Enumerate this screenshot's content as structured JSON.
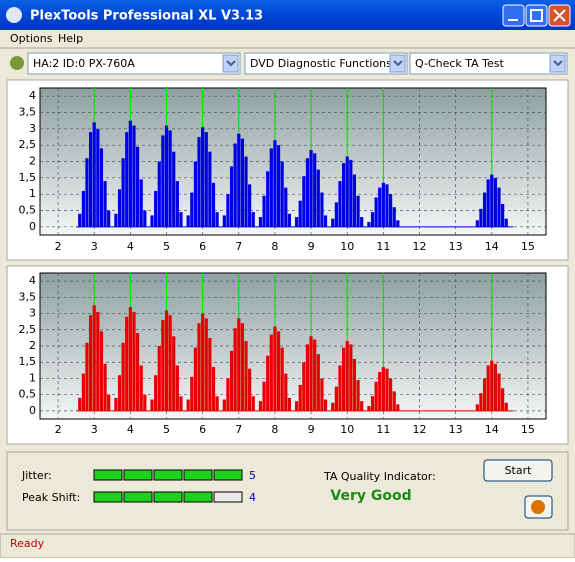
{
  "window": {
    "title": "PlexTools Professional XL V3.13"
  },
  "menu": [
    "Options",
    "Help"
  ],
  "toolbar": {
    "drive": "HA:2 ID:0  PX-760A",
    "function": "DVD Diagnostic Functions",
    "test": "Q-Check TA Test"
  },
  "charts": [
    {
      "type": "bar",
      "color": "#0000e8",
      "marker_color": "#00e000",
      "grid": true,
      "xlim": [
        1.5,
        15.5
      ],
      "ylim": [
        -0.25,
        4.25
      ],
      "xticks": [
        2,
        3,
        4,
        5,
        6,
        7,
        8,
        9,
        10,
        11,
        12,
        13,
        14,
        15
      ],
      "yticks": [
        {
          "value": 0,
          "label": "0"
        },
        {
          "value": 0.5,
          "label": "0,5"
        },
        {
          "value": 1,
          "label": "1"
        },
        {
          "value": 1.5,
          "label": "1,5"
        },
        {
          "value": 2,
          "label": "2"
        },
        {
          "value": 2.5,
          "label": "2,5"
        },
        {
          "value": 3,
          "label": "3"
        },
        {
          "value": 3.5,
          "label": "3,5"
        },
        {
          "value": 4,
          "label": "4"
        }
      ],
      "markers": [
        3,
        4,
        5,
        6,
        7,
        8,
        9,
        10,
        11,
        14
      ],
      "x": [
        2.6,
        2.7,
        2.8,
        2.9,
        3.0,
        3.1,
        3.2,
        3.3,
        3.4,
        3.6,
        3.7,
        3.8,
        3.9,
        4.0,
        4.1,
        4.2,
        4.3,
        4.4,
        4.6,
        4.7,
        4.8,
        4.9,
        5.0,
        5.1,
        5.2,
        5.3,
        5.4,
        5.6,
        5.7,
        5.8,
        5.9,
        6.0,
        6.1,
        6.2,
        6.3,
        6.4,
        6.6,
        6.7,
        6.8,
        6.9,
        7.0,
        7.1,
        7.2,
        7.3,
        7.4,
        7.6,
        7.7,
        7.8,
        7.9,
        8.0,
        8.1,
        8.2,
        8.3,
        8.4,
        8.6,
        8.7,
        8.8,
        8.9,
        9.0,
        9.1,
        9.2,
        9.3,
        9.4,
        9.6,
        9.7,
        9.8,
        9.9,
        10.0,
        10.1,
        10.2,
        10.3,
        10.4,
        10.6,
        10.7,
        10.8,
        10.9,
        11.0,
        11.1,
        11.2,
        11.3,
        11.4,
        13.6,
        13.7,
        13.8,
        13.9,
        14.0,
        14.1,
        14.2,
        14.3,
        14.4
      ],
      "values": [
        0.4,
        1.1,
        2.1,
        2.9,
        3.2,
        3.0,
        2.4,
        1.4,
        0.5,
        0.4,
        1.15,
        2.1,
        2.9,
        3.25,
        3.1,
        2.45,
        1.45,
        0.5,
        0.35,
        1.1,
        2.0,
        2.8,
        3.1,
        2.95,
        2.3,
        1.4,
        0.45,
        0.35,
        1.05,
        2.0,
        2.75,
        3.05,
        2.9,
        2.3,
        1.35,
        0.45,
        0.35,
        1.0,
        1.85,
        2.55,
        2.85,
        2.7,
        2.15,
        1.3,
        0.45,
        0.3,
        0.95,
        1.7,
        2.4,
        2.65,
        2.5,
        2.0,
        1.2,
        0.4,
        0.3,
        0.8,
        1.55,
        2.1,
        2.35,
        2.25,
        1.75,
        1.05,
        0.35,
        0.25,
        0.75,
        1.4,
        1.95,
        2.15,
        2.05,
        1.6,
        0.95,
        0.3,
        0.15,
        0.45,
        0.9,
        1.2,
        1.35,
        1.3,
        1.0,
        0.6,
        0.2,
        0.2,
        0.55,
        1.05,
        1.45,
        1.6,
        1.5,
        1.2,
        0.7,
        0.25
      ]
    },
    {
      "type": "bar",
      "color": "#e80000",
      "marker_color": "#00e000",
      "grid": true,
      "xlim": [
        1.5,
        15.5
      ],
      "ylim": [
        -0.25,
        4.25
      ],
      "xticks": [
        2,
        3,
        4,
        5,
        6,
        7,
        8,
        9,
        10,
        11,
        12,
        13,
        14,
        15
      ],
      "yticks": [
        {
          "value": 0,
          "label": "0"
        },
        {
          "value": 0.5,
          "label": "0,5"
        },
        {
          "value": 1,
          "label": "1"
        },
        {
          "value": 1.5,
          "label": "1,5"
        },
        {
          "value": 2,
          "label": "2"
        },
        {
          "value": 2.5,
          "label": "2,5"
        },
        {
          "value": 3,
          "label": "3"
        },
        {
          "value": 3.5,
          "label": "3,5"
        },
        {
          "value": 4,
          "label": "4"
        }
      ],
      "markers": [
        3,
        4,
        5,
        6,
        7,
        8,
        9,
        10,
        11,
        14
      ],
      "x": [
        2.6,
        2.7,
        2.8,
        2.9,
        3.0,
        3.1,
        3.2,
        3.3,
        3.4,
        3.6,
        3.7,
        3.8,
        3.9,
        4.0,
        4.1,
        4.2,
        4.3,
        4.4,
        4.6,
        4.7,
        4.8,
        4.9,
        5.0,
        5.1,
        5.2,
        5.3,
        5.4,
        5.6,
        5.7,
        5.8,
        5.9,
        6.0,
        6.1,
        6.2,
        6.3,
        6.4,
        6.6,
        6.7,
        6.8,
        6.9,
        7.0,
        7.1,
        7.2,
        7.3,
        7.4,
        7.6,
        7.7,
        7.8,
        7.9,
        8.0,
        8.1,
        8.2,
        8.3,
        8.4,
        8.6,
        8.7,
        8.8,
        8.9,
        9.0,
        9.1,
        9.2,
        9.3,
        9.4,
        9.6,
        9.7,
        9.8,
        9.9,
        10.0,
        10.1,
        10.2,
        10.3,
        10.4,
        10.6,
        10.7,
        10.8,
        10.9,
        11.0,
        11.1,
        11.2,
        11.3,
        11.4,
        13.6,
        13.7,
        13.8,
        13.9,
        14.0,
        14.1,
        14.2,
        14.3,
        14.4
      ],
      "values": [
        0.4,
        1.15,
        2.1,
        2.95,
        3.25,
        3.05,
        2.45,
        1.45,
        0.5,
        0.4,
        1.1,
        2.1,
        2.9,
        3.2,
        3.05,
        2.4,
        1.4,
        0.5,
        0.35,
        1.1,
        2.0,
        2.8,
        3.1,
        2.95,
        2.3,
        1.4,
        0.45,
        0.35,
        1.05,
        1.95,
        2.7,
        3.0,
        2.85,
        2.25,
        1.35,
        0.45,
        0.35,
        1.0,
        1.85,
        2.55,
        2.85,
        2.7,
        2.15,
        1.3,
        0.45,
        0.3,
        0.9,
        1.7,
        2.35,
        2.6,
        2.45,
        1.95,
        1.15,
        0.4,
        0.3,
        0.8,
        1.5,
        2.05,
        2.3,
        2.2,
        1.75,
        1.0,
        0.35,
        0.25,
        0.75,
        1.4,
        1.95,
        2.15,
        2.05,
        1.6,
        0.95,
        0.3,
        0.15,
        0.45,
        0.9,
        1.2,
        1.35,
        1.3,
        1.0,
        0.6,
        0.2,
        0.2,
        0.55,
        1.0,
        1.4,
        1.55,
        1.45,
        1.15,
        0.7,
        0.25
      ]
    }
  ],
  "jitter": {
    "label": "Jitter:",
    "value": 5,
    "max": 5
  },
  "peak_shift": {
    "label": "Peak Shift:",
    "value": 4,
    "max": 5
  },
  "ta_quality": {
    "label": "TA Quality Indicator:",
    "value": "Very Good"
  },
  "start": "Start",
  "status": "Ready"
}
